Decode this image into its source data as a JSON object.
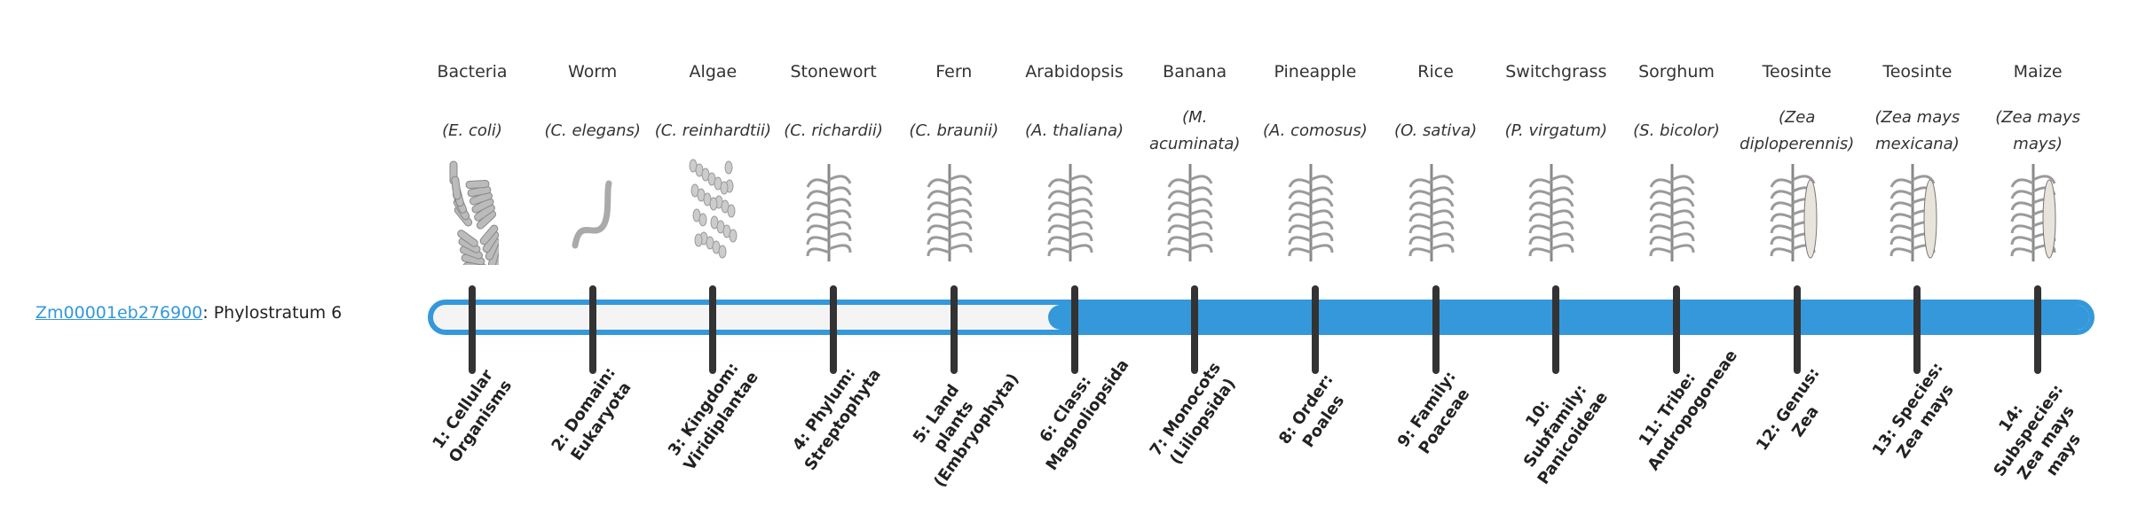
{
  "gene": {
    "id": "Zm00001eb276900",
    "suffix": ": Phylostratum 6",
    "phylostratum": 6
  },
  "colors": {
    "accent": "#3498db",
    "tick": "#333333",
    "bar_empty": "#f4f4f4"
  },
  "strata": [
    {
      "common": "Bacteria",
      "scientific": "(E. coli)",
      "rank": "1: Cellular Organisms",
      "icon": "bacteria-illustration"
    },
    {
      "common": "Worm",
      "scientific": "(C. elegans)",
      "rank": "2: Domain: Eukaryota",
      "icon": "worm-illustration"
    },
    {
      "common": "Algae",
      "scientific": "(C. reinhardtii)",
      "rank": "3: Kingdom: Viridiplantae",
      "icon": "algae-illustration"
    },
    {
      "common": "Stonewort",
      "scientific": "(C. richardii)",
      "rank": "4: Phylum: Streptophyta",
      "icon": "stonewort-illustration"
    },
    {
      "common": "Fern",
      "scientific": "(C. braunii)",
      "rank": "5: Land plants (Embryophyta)",
      "icon": "fern-illustration"
    },
    {
      "common": "Arabidopsis",
      "scientific": "(A. thaliana)",
      "rank": "6: Class: Magnoliopsida",
      "icon": "arabidopsis-illustration"
    },
    {
      "common": "Banana",
      "scientific": "(M. acuminata)",
      "rank": "7: Monocots (Liliopsida)",
      "icon": "banana-illustration"
    },
    {
      "common": "Pineapple",
      "scientific": "(A. comosus)",
      "rank": "8: Order: Poales",
      "icon": "pineapple-illustration"
    },
    {
      "common": "Rice",
      "scientific": "(O. sativa)",
      "rank": "9: Family: Poaceae",
      "icon": "rice-illustration"
    },
    {
      "common": "Switchgrass",
      "scientific": "(P. virgatum)",
      "rank": "10: Subfamily: Panicoideae",
      "icon": "switchgrass-illustration"
    },
    {
      "common": "Sorghum",
      "scientific": "(S. bicolor)",
      "rank": "11: Tribe: Andropogoneae",
      "icon": "sorghum-illustration"
    },
    {
      "common": "Teosinte",
      "scientific": "(Zea diploperennis)",
      "rank": "12: Genus: Zea",
      "icon": "teosinte-illustration"
    },
    {
      "common": "Teosinte",
      "scientific": "(Zea mays mexicana)",
      "rank": "13: Species: Zea mays",
      "icon": "teosinte-mexicana-illustration"
    },
    {
      "common": "Maize",
      "scientific": "(Zea mays mays)",
      "rank": "14: Subspecies: Zea mays mays",
      "icon": "maize-illustration"
    }
  ]
}
